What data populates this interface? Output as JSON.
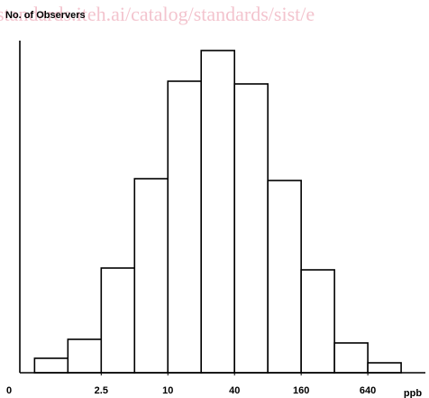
{
  "watermark": "standards.iteh.ai/catalog/standards/sist/e",
  "chart_data": {
    "type": "histogram",
    "title": "No. of Observers",
    "x_label": "ppb",
    "origin_label": "0",
    "bins": [
      0.625,
      1.25,
      2.5,
      5,
      10,
      20,
      40,
      80,
      160,
      320,
      640,
      1280
    ],
    "values": [
      16,
      37,
      116,
      215,
      323,
      357,
      320,
      213,
      114,
      33,
      11
    ],
    "color": "#ffffff",
    "edge_color": "#000000",
    "xscale": "log",
    "xlim": [
      0.46,
      2120
    ],
    "xticks": [
      2.5,
      10,
      40,
      160,
      640
    ],
    "ylim": [
      0,
      368
    ],
    "grid": false
  }
}
